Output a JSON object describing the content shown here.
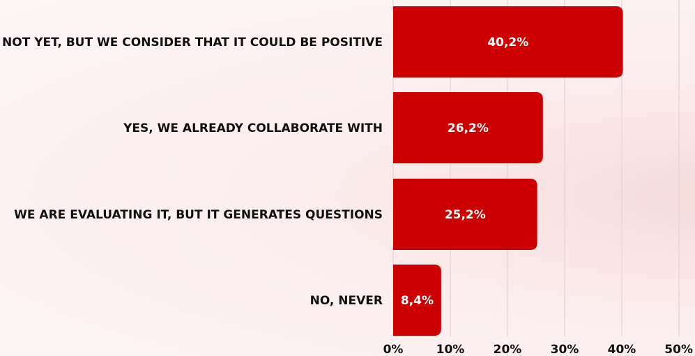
{
  "chart_data": {
    "type": "bar",
    "orientation": "horizontal",
    "categories": [
      "NOT YET, BUT WE CONSIDER THAT IT COULD BE POSITIVE",
      "YES, WE ALREADY COLLABORATE WITH",
      "WE ARE EVALUATING IT, BUT IT GENERATES QUESTIONS",
      "NO, NEVER"
    ],
    "values": [
      40.2,
      26.2,
      25.2,
      8.4
    ],
    "value_labels": [
      "40,2%",
      "26,2%",
      "25,2%",
      "8,4%"
    ],
    "xlim": [
      0,
      50
    ],
    "x_ticks": [
      "0%",
      "10%",
      "20%",
      "30%",
      "40%",
      "50%"
    ],
    "title": "",
    "xlabel": "",
    "ylabel": "",
    "grid": "vertical",
    "legend": "none",
    "bar_color": "#cc0000",
    "grid_color": "#e0cfcf"
  }
}
